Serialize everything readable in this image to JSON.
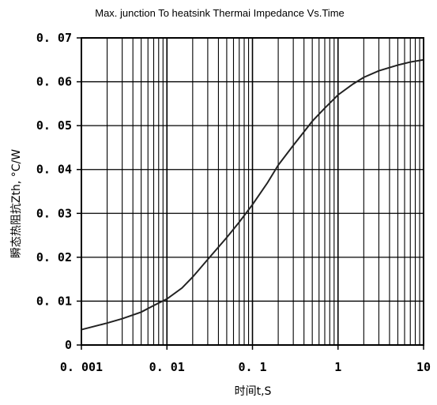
{
  "chart_data": {
    "type": "line",
    "title": "Max. junction To heatsink Thermai Impedance Vs.Time",
    "xlabel": "时间t,S",
    "ylabel": "瞬态热阻抗Zth, °C/W",
    "x_scale": "log",
    "xlim": [
      0.001,
      10
    ],
    "ylim": [
      0,
      0.07
    ],
    "grid": true,
    "x_ticks": [
      "0. 001",
      "0. 01",
      "0. 1",
      "1",
      "10"
    ],
    "y_ticks": [
      "0",
      "0. 01",
      "0. 02",
      "0. 03",
      "0. 04",
      "0. 05",
      "0. 06",
      "0. 07"
    ],
    "series": [
      {
        "x": [
          0.001,
          0.002,
          0.003,
          0.005,
          0.007,
          0.01,
          0.015,
          0.02,
          0.03,
          0.05,
          0.07,
          0.1,
          0.15,
          0.2,
          0.3,
          0.5,
          0.7,
          1,
          1.5,
          2,
          3,
          5,
          7,
          10
        ],
        "y": [
          0.0035,
          0.005,
          0.006,
          0.0075,
          0.009,
          0.0105,
          0.013,
          0.0155,
          0.0195,
          0.0245,
          0.028,
          0.032,
          0.037,
          0.041,
          0.0455,
          0.051,
          0.054,
          0.057,
          0.0595,
          0.061,
          0.0625,
          0.0638,
          0.0645,
          0.065
        ]
      }
    ]
  }
}
